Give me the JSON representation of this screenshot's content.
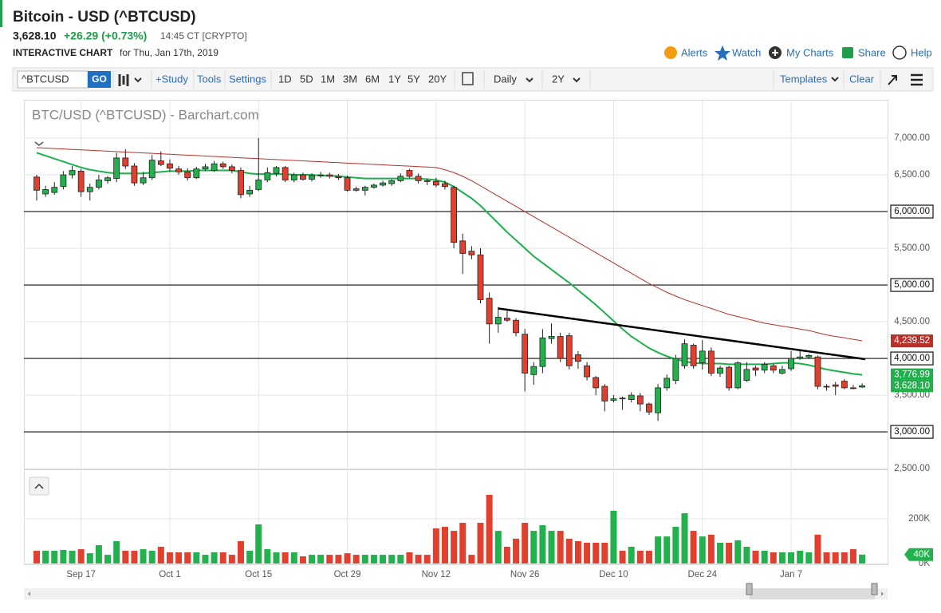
{
  "header": {
    "title": "Bitcoin - USD (^BTCUSD)",
    "price": "3,628.10",
    "change": "+26.29 (+0.73%)",
    "time": "14:45 CT [CRYPTO]",
    "subtitle": "INTERACTIVE CHART",
    "date": "for Thu, Jan 17th, 2019",
    "links": [
      "Alerts",
      "Watch",
      "My Charts",
      "Share",
      "Help"
    ]
  },
  "toolbar": {
    "symbol": "^BTCUSD",
    "go": "GO",
    "tools": [
      "+Study",
      "Tools",
      "Settings"
    ],
    "ranges": [
      "1D",
      "5D",
      "1M",
      "3M",
      "6M",
      "1Y",
      "5Y",
      "20Y"
    ],
    "interval": "Daily",
    "period": "2Y",
    "templates": "Templates",
    "clear": "Clear"
  },
  "chart_data": {
    "type": "candlestick",
    "title": "BTC/USD (^BTCUSD) - Barchart.com",
    "categories": [
      null,
      null,
      null,
      null,
      null,
      "Sep 17",
      null,
      null,
      null,
      null,
      null,
      null,
      null,
      null,
      null,
      "Oct 1",
      null,
      null,
      null,
      null,
      null,
      null,
      null,
      null,
      null,
      "Oct 15",
      null,
      null,
      null,
      null,
      null,
      null,
      null,
      null,
      null,
      "Oct 29",
      null,
      null,
      null,
      null,
      null,
      null,
      null,
      null,
      null,
      "Nov 12",
      null,
      null,
      null,
      null,
      null,
      null,
      null,
      null,
      null,
      "Nov 26",
      null,
      null,
      null,
      null,
      null,
      null,
      null,
      null,
      null,
      "Dec 10",
      null,
      null,
      null,
      null,
      null,
      null,
      null,
      null,
      null,
      "Dec 24",
      null,
      null,
      null,
      null,
      null,
      null,
      null,
      null,
      null,
      "Jan 7",
      null,
      null,
      null,
      null,
      null,
      null,
      null,
      null
    ],
    "open": [
      6470,
      6240,
      6260,
      6340,
      6500,
      6550,
      6270,
      6330,
      6420,
      6450,
      6730,
      6620,
      6390,
      6460,
      6690,
      6650,
      6580,
      6540,
      6460,
      6580,
      6560,
      6650,
      6610,
      6560,
      6240,
      6300,
      6430,
      6520,
      6600,
      6430,
      6500,
      6440,
      6490,
      6500,
      6480,
      6460,
      6310,
      6290,
      6330,
      6360,
      6380,
      6420,
      6560,
      6480,
      6420,
      6410,
      6380,
      6330,
      5600,
      5460,
      5410,
      4820,
      4470,
      4550,
      4520,
      4330,
      3780,
      3890,
      4270,
      4300,
      4310,
      4050,
      3900,
      3740,
      3620,
      3430,
      3460,
      3440,
      3490,
      3380,
      3260,
      3600,
      3700,
      3900,
      4180,
      3940,
      4100,
      3800,
      3880,
      3600,
      3700,
      3870,
      3840,
      3900,
      3800,
      3860,
      4000,
      4020,
      4020,
      3620,
      3640,
      3690,
      3600,
      3610
    ],
    "high": [
      6500,
      6350,
      6400,
      6550,
      6620,
      6580,
      6380,
      6500,
      6480,
      6800,
      6850,
      6660,
      6540,
      6770,
      6820,
      6710,
      6620,
      6590,
      6610,
      6650,
      6690,
      6680,
      6640,
      6600,
      6350,
      7000,
      6600,
      6620,
      6620,
      6530,
      6530,
      6520,
      6540,
      6530,
      6510,
      6490,
      6340,
      6350,
      6380,
      6420,
      6440,
      6520,
      6580,
      6520,
      6450,
      6460,
      6420,
      6350,
      5700,
      5530,
      5500,
      4900,
      4700,
      4650,
      4550,
      4400,
      3950,
      4400,
      4480,
      4350,
      4350,
      4100,
      3950,
      3760,
      3650,
      3500,
      3480,
      3540,
      3530,
      3400,
      3650,
      3780,
      4050,
      4260,
      4200,
      4250,
      4150,
      3900,
      3900,
      3960,
      3950,
      3900,
      3950,
      3930,
      3900,
      4100,
      4100,
      4060,
      4040,
      3650,
      3680,
      3720,
      3640,
      3660
    ],
    "low": [
      6150,
      6200,
      6230,
      6300,
      6450,
      6200,
      6150,
      6300,
      6380,
      6400,
      6580,
      6350,
      6360,
      6430,
      6620,
      6540,
      6500,
      6420,
      6440,
      6550,
      6540,
      6580,
      6520,
      6180,
      6200,
      6280,
      6400,
      6480,
      6400,
      6400,
      6420,
      6410,
      6460,
      6450,
      6430,
      6270,
      6270,
      6220,
      6310,
      6340,
      6350,
      6400,
      6460,
      6380,
      6360,
      6330,
      6300,
      5500,
      5150,
      5350,
      4750,
      4200,
      4350,
      4500,
      4300,
      3550,
      3640,
      3800,
      4200,
      3950,
      3850,
      3860,
      3700,
      3500,
      3280,
      3400,
      3300,
      3400,
      3280,
      3230,
      3150,
      3560,
      3650,
      3860,
      3860,
      3850,
      3760,
      3750,
      3560,
      3580,
      3680,
      3760,
      3800,
      3800,
      3780,
      3830,
      3980,
      4000,
      3580,
      3560,
      3500,
      3580,
      3580,
      3600
    ],
    "close": [
      6290,
      6300,
      6330,
      6500,
      6560,
      6270,
      6330,
      6430,
      6460,
      6730,
      6620,
      6390,
      6460,
      6700,
      6640,
      6590,
      6540,
      6460,
      6580,
      6610,
      6650,
      6610,
      6560,
      6230,
      6290,
      6430,
      6530,
      6600,
      6430,
      6500,
      6440,
      6490,
      6500,
      6480,
      6460,
      6290,
      6290,
      6330,
      6360,
      6390,
      6420,
      6480,
      6480,
      6420,
      6410,
      6360,
      6340,
      5580,
      5430,
      5410,
      4800,
      4470,
      4560,
      4520,
      4350,
      3800,
      3890,
      4280,
      4300,
      4000,
      3900,
      3960,
      3750,
      3600,
      3420,
      3450,
      3450,
      3500,
      3380,
      3270,
      3600,
      3730,
      4000,
      4200,
      3900,
      4100,
      3800,
      3870,
      3600,
      3940,
      3850,
      3840,
      3920,
      3840,
      3850,
      4000,
      4020,
      4040,
      3620,
      3610,
      3620,
      3600,
      3590,
      3628.1
    ],
    "close_label": "3,628.10",
    "up_color": "#22b14c",
    "down_color": "#e2402e",
    "series": [
      {
        "color": "#1db04c",
        "last_label": "3,776.99",
        "values": [
          6800,
          6760,
          6720,
          6680,
          6640,
          6600,
          6570,
          6550,
          6530,
          6520,
          6520,
          6520,
          6520,
          6530,
          6540,
          6550,
          6550,
          6550,
          6560,
          6560,
          6560,
          6560,
          6560,
          6540,
          6520,
          6510,
          6510,
          6510,
          6510,
          6500,
          6500,
          6500,
          6490,
          6490,
          6480,
          6470,
          6460,
          6450,
          6450,
          6450,
          6450,
          6450,
          6450,
          6450,
          6440,
          6430,
          6400,
          6340,
          6260,
          6180,
          6080,
          5960,
          5840,
          5720,
          5610,
          5500,
          5390,
          5300,
          5210,
          5120,
          5030,
          4930,
          4830,
          4730,
          4620,
          4510,
          4400,
          4300,
          4220,
          4140,
          4080,
          4030,
          3990,
          3960,
          3940,
          3930,
          3930,
          3930,
          3920,
          3920,
          3920,
          3920,
          3920,
          3930,
          3940,
          3940,
          3930,
          3910,
          3880,
          3850,
          3830,
          3810,
          3790,
          3776.99
        ]
      },
      {
        "color": "#b8312a",
        "last_label": "4,239.52",
        "values": [
          6870,
          6864,
          6858,
          6852,
          6846,
          6840,
          6834,
          6828,
          6822,
          6816,
          6810,
          6804,
          6798,
          6792,
          6786,
          6780,
          6774,
          6768,
          6762,
          6756,
          6750,
          6744,
          6738,
          6732,
          6726,
          6720,
          6714,
          6708,
          6702,
          6696,
          6690,
          6684,
          6678,
          6672,
          6666,
          6660,
          6654,
          6648,
          6642,
          6636,
          6630,
          6624,
          6618,
          6612,
          6606,
          6600,
          6570,
          6530,
          6480,
          6420,
          6350,
          6280,
          6210,
          6140,
          6070,
          6000,
          5930,
          5860,
          5790,
          5720,
          5650,
          5580,
          5510,
          5440,
          5370,
          5300,
          5230,
          5160,
          5090,
          5020,
          4960,
          4900,
          4850,
          4800,
          4760,
          4720,
          4680,
          4640,
          4600,
          4570,
          4540,
          4510,
          4480,
          4460,
          4440,
          4420,
          4400,
          4380,
          4350,
          4320,
          4300,
          4280,
          4260,
          4239.52
        ]
      }
    ],
    "hlines": [
      {
        "value": 6000,
        "label": "6,000.00"
      },
      {
        "value": 5000,
        "label": "5,000.00"
      },
      {
        "value": 4000,
        "label": "4,000.00"
      },
      {
        "value": 3000,
        "label": "3,000.00"
      }
    ],
    "trendline": {
      "values": [
        4680,
        3990
      ]
    },
    "ylim": [
      2490,
      7522
    ],
    "yticks": [
      {
        "value": 7000,
        "label": "7,000.00"
      },
      {
        "value": 6500,
        "label": "6,500.00"
      },
      {
        "value": 5500,
        "label": "5,500.00"
      },
      {
        "value": 4500,
        "label": "4,500.00"
      },
      {
        "value": 3500,
        "label": "3,500.00"
      },
      {
        "value": 2500,
        "label": "2,500.00"
      }
    ],
    "grid": true,
    "volume": {
      "values": [
        57000,
        57000,
        57000,
        61000,
        57000,
        64000,
        46000,
        82000,
        39000,
        100000,
        57000,
        57000,
        64000,
        57000,
        75000,
        50000,
        50000,
        50000,
        50000,
        39000,
        50000,
        50000,
        39000,
        100000,
        57000,
        175000,
        64000,
        50000,
        50000,
        50000,
        32000,
        39000,
        39000,
        39000,
        39000,
        46000,
        39000,
        39000,
        39000,
        39000,
        39000,
        39000,
        50000,
        39000,
        39000,
        157000,
        164000,
        146000,
        182000,
        39000,
        182000,
        307000,
        146000,
        75000,
        111000,
        182000,
        146000,
        171000,
        146000,
        146000,
        111000,
        100000,
        93000,
        93000,
        93000,
        236000,
        57000,
        75000,
        57000,
        57000,
        121000,
        121000,
        164000,
        225000,
        146000,
        121000,
        129000,
        93000,
        93000,
        104000,
        75000,
        57000,
        57000,
        50000,
        50000,
        50000,
        57000,
        50000,
        129000,
        50000,
        50000,
        50000,
        64000,
        40000
      ],
      "ylim": [
        0,
        396000
      ],
      "yticks": [
        {
          "value": 200000,
          "label": "200K"
        },
        {
          "value": 0,
          "label": "0K"
        }
      ],
      "last": {
        "value": 40000,
        "label": "40K"
      }
    }
  }
}
